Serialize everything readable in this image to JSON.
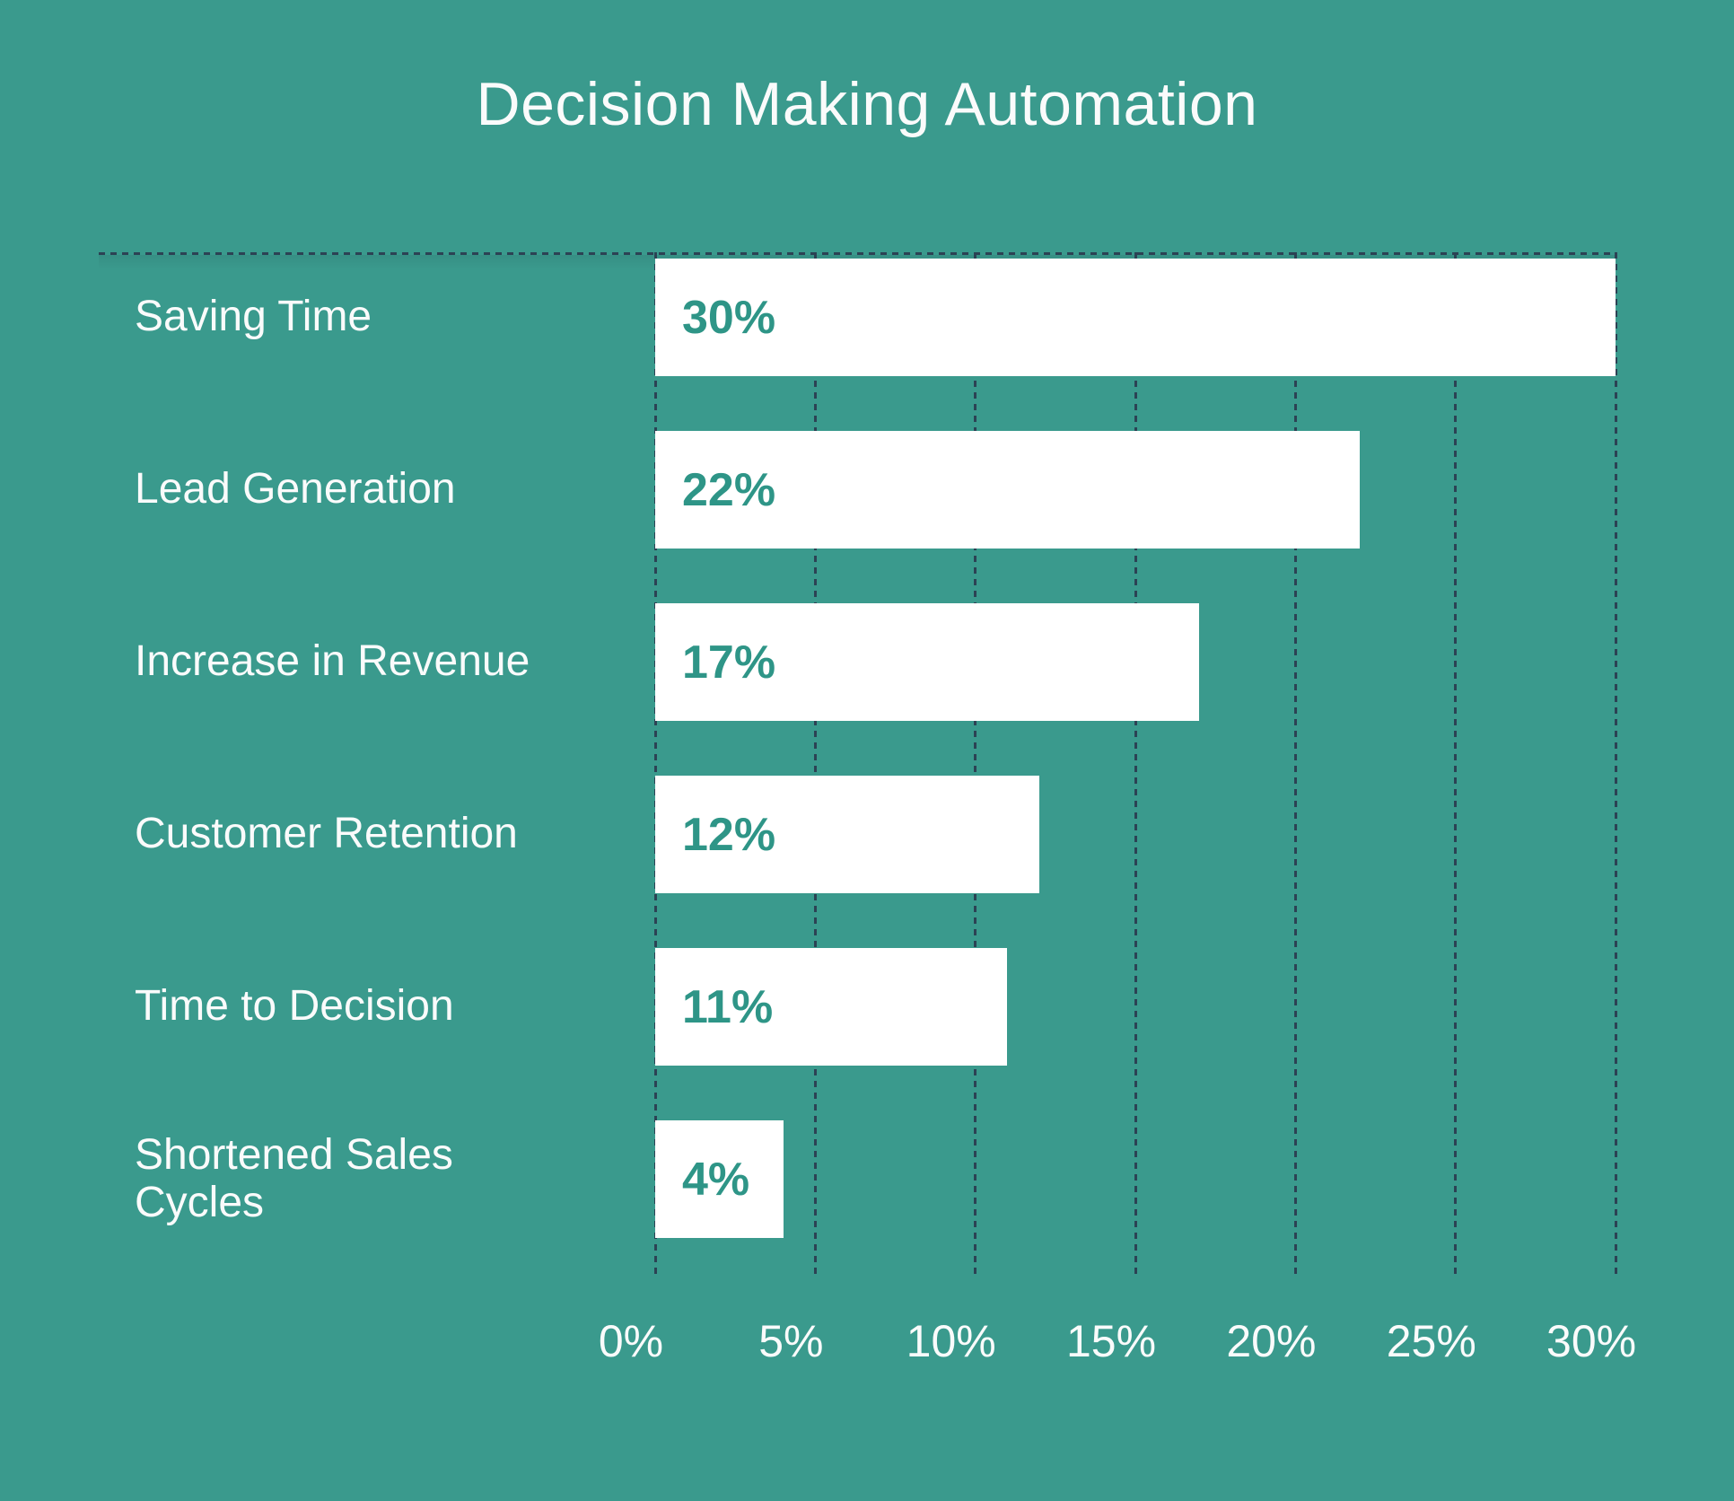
{
  "chart": {
    "background_color": "#3A9A8D",
    "bar_color": "#FFFFFF",
    "value_label_color": "#2E9587",
    "gridline_color": "#2C4254",
    "text_color": "#FAFBFB"
  },
  "chart_data": {
    "type": "bar",
    "orientation": "horizontal",
    "title": "Decision Making Automation",
    "categories": [
      "Saving Time",
      "Lead Generation",
      "Increase in Revenue",
      "Customer Retention",
      "Time to Decision",
      "Shortened Sales Cycles"
    ],
    "values": [
      30,
      22,
      17,
      12,
      11,
      4
    ],
    "value_labels": [
      "30%",
      "22%",
      "17%",
      "12%",
      "11%",
      "4%"
    ],
    "x_ticks": [
      "0%",
      "5%",
      "10%",
      "15%",
      "20%",
      "25%",
      "30%"
    ],
    "x_tick_values": [
      0,
      5,
      10,
      15,
      20,
      25,
      30
    ],
    "xlim": [
      0,
      30
    ],
    "xlabel": "",
    "ylabel": "",
    "grid": "dashed-vertical",
    "legend": "none"
  }
}
